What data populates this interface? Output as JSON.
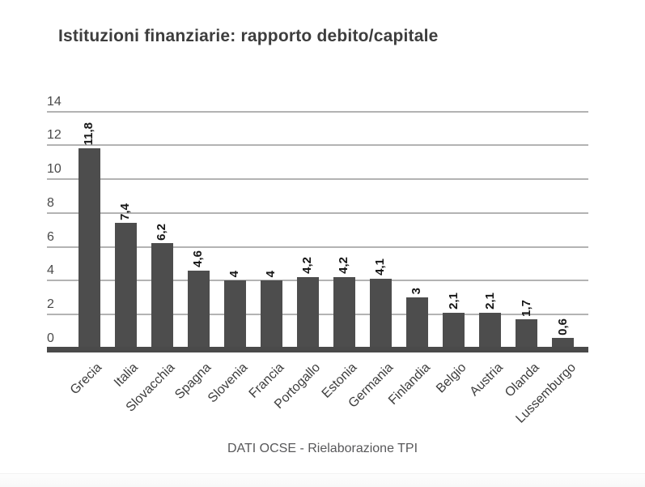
{
  "page": {
    "title": "Istituzioni finanziarie: rapporto debito/capitale",
    "source": "DATI OCSE - Rielaborazione TPI"
  },
  "chart_data": {
    "type": "bar",
    "title": "Istituzioni finanziarie: rapporto debito/capitale",
    "categories": [
      "Grecia",
      "Italia",
      "Slovacchia",
      "Spagna",
      "Slovenia",
      "Francia",
      "Portogallo",
      "Estonia",
      "Germania",
      "Finlandia",
      "Belgio",
      "Austria",
      "Olanda",
      "Lussemburgo"
    ],
    "values": [
      11.8,
      7.4,
      6.2,
      4.6,
      4,
      4,
      4.2,
      4.2,
      4.1,
      3,
      2.1,
      2.1,
      1.7,
      0.6
    ],
    "value_labels": [
      "11,8",
      "7,4",
      "6,2",
      "4,6",
      "4",
      "4",
      "4,2",
      "4,2",
      "4,1",
      "3",
      "2,1",
      "2,1",
      "1,7",
      "0,6"
    ],
    "yticks": [
      0,
      2,
      4,
      6,
      8,
      10,
      12,
      14
    ],
    "ylim": [
      0,
      14
    ],
    "xlabel": "",
    "ylabel": "",
    "grid": true,
    "legend": "none",
    "source": "DATI OCSE - Rielaborazione TPI",
    "colors": {
      "bar": "#4d4d4d",
      "gridline": "#b3b3b3",
      "axis_baseline": "#4a4a4a",
      "title": "#3d3d3d",
      "tick_label": "#4a4a4a",
      "value_label": "#161616",
      "category_label": "#3d3d3d",
      "source_text": "#58585a",
      "background": "#ffffff"
    }
  }
}
